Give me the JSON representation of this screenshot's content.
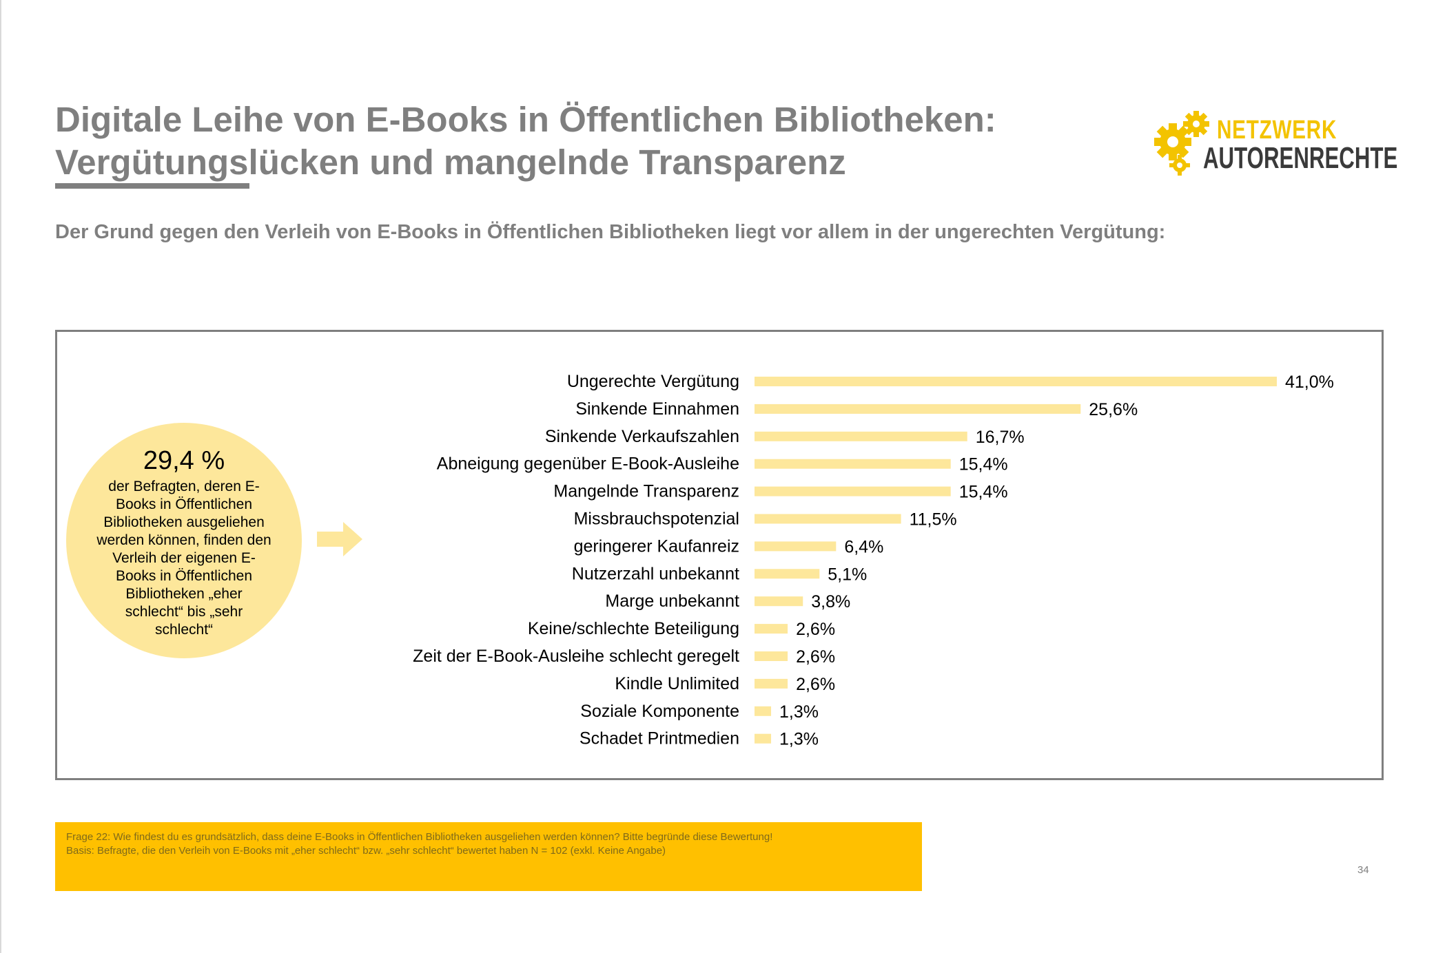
{
  "slide": {
    "title_line_1": "Digitale Leihe von E-Books in Öffentlichen Bibliotheken:",
    "title_line_2": "Vergütungslücken und mangelnde Transparenz",
    "subtitle": "Der Grund gegen den Verleih von E-Books in Öffentlichen Bibliotheken liegt vor allem in der ungerechten Vergütung:",
    "page_number": "34"
  },
  "logo": {
    "word_1": "NETZWERK",
    "word_2": "AUTORENRECHTE",
    "icon": "gears-icon",
    "colors": {
      "gears": "#f3c300",
      "word_1": "#f3c300",
      "word_2": "#3a3a3a"
    }
  },
  "highlight": {
    "value": "29,4 %",
    "text": "der Befragten, deren E-Books in Öffentlichen Bibliotheken ausgeliehen werden können, finden den Verleih der eigenen E-Books in Öffentlichen Bibliotheken „eher schlecht“ bis „sehr schlecht“",
    "arrow_icon": "arrow-right-icon",
    "color": "#fde79b"
  },
  "footnote": {
    "line_1": "Frage 22: Wie findest du es grundsätzlich, dass deine E-Books in Öffentlichen Bibliotheken ausgeliehen werden können? Bitte begründe diese Bewertung!",
    "line_2": "Basis: Befragte, die den Verleih von E-Books mit „eher schlecht“ bzw. „sehr schlecht“ bewertet haben N = 102 (exkl. Keine Angabe)",
    "color": "#ffc000"
  },
  "chart_data": {
    "type": "bar",
    "orientation": "horizontal",
    "categories": [
      "Ungerechte Vergütung",
      "Sinkende Einnahmen",
      "Sinkende Verkaufszahlen",
      "Abneigung gegenüber E-Book-Ausleihe",
      "Mangelnde Transparenz",
      "Missbrauchspotenzial",
      "geringerer Kaufanreiz",
      "Nutzerzahl unbekannt",
      "Marge unbekannt",
      "Keine/schlechte Beteiligung",
      "Zeit der E-Book-Ausleihe schlecht geregelt",
      "Kindle Unlimited",
      "Soziale Komponente",
      "Schadet Printmedien"
    ],
    "values": [
      41.0,
      25.6,
      16.7,
      15.4,
      15.4,
      11.5,
      6.4,
      5.1,
      3.8,
      2.6,
      2.6,
      2.6,
      1.3,
      1.3
    ],
    "value_labels": [
      "41,0%",
      "25,6%",
      "16,7%",
      "15,4%",
      "15,4%",
      "11,5%",
      "6,4%",
      "5,1%",
      "3,8%",
      "2,6%",
      "2,6%",
      "2,6%",
      "1,3%",
      "1,3%"
    ],
    "unit": "%",
    "xlim": [
      0,
      41.0
    ],
    "axes_visible": false,
    "grid": false,
    "legend": "none",
    "bar_color": "#fde79b"
  }
}
